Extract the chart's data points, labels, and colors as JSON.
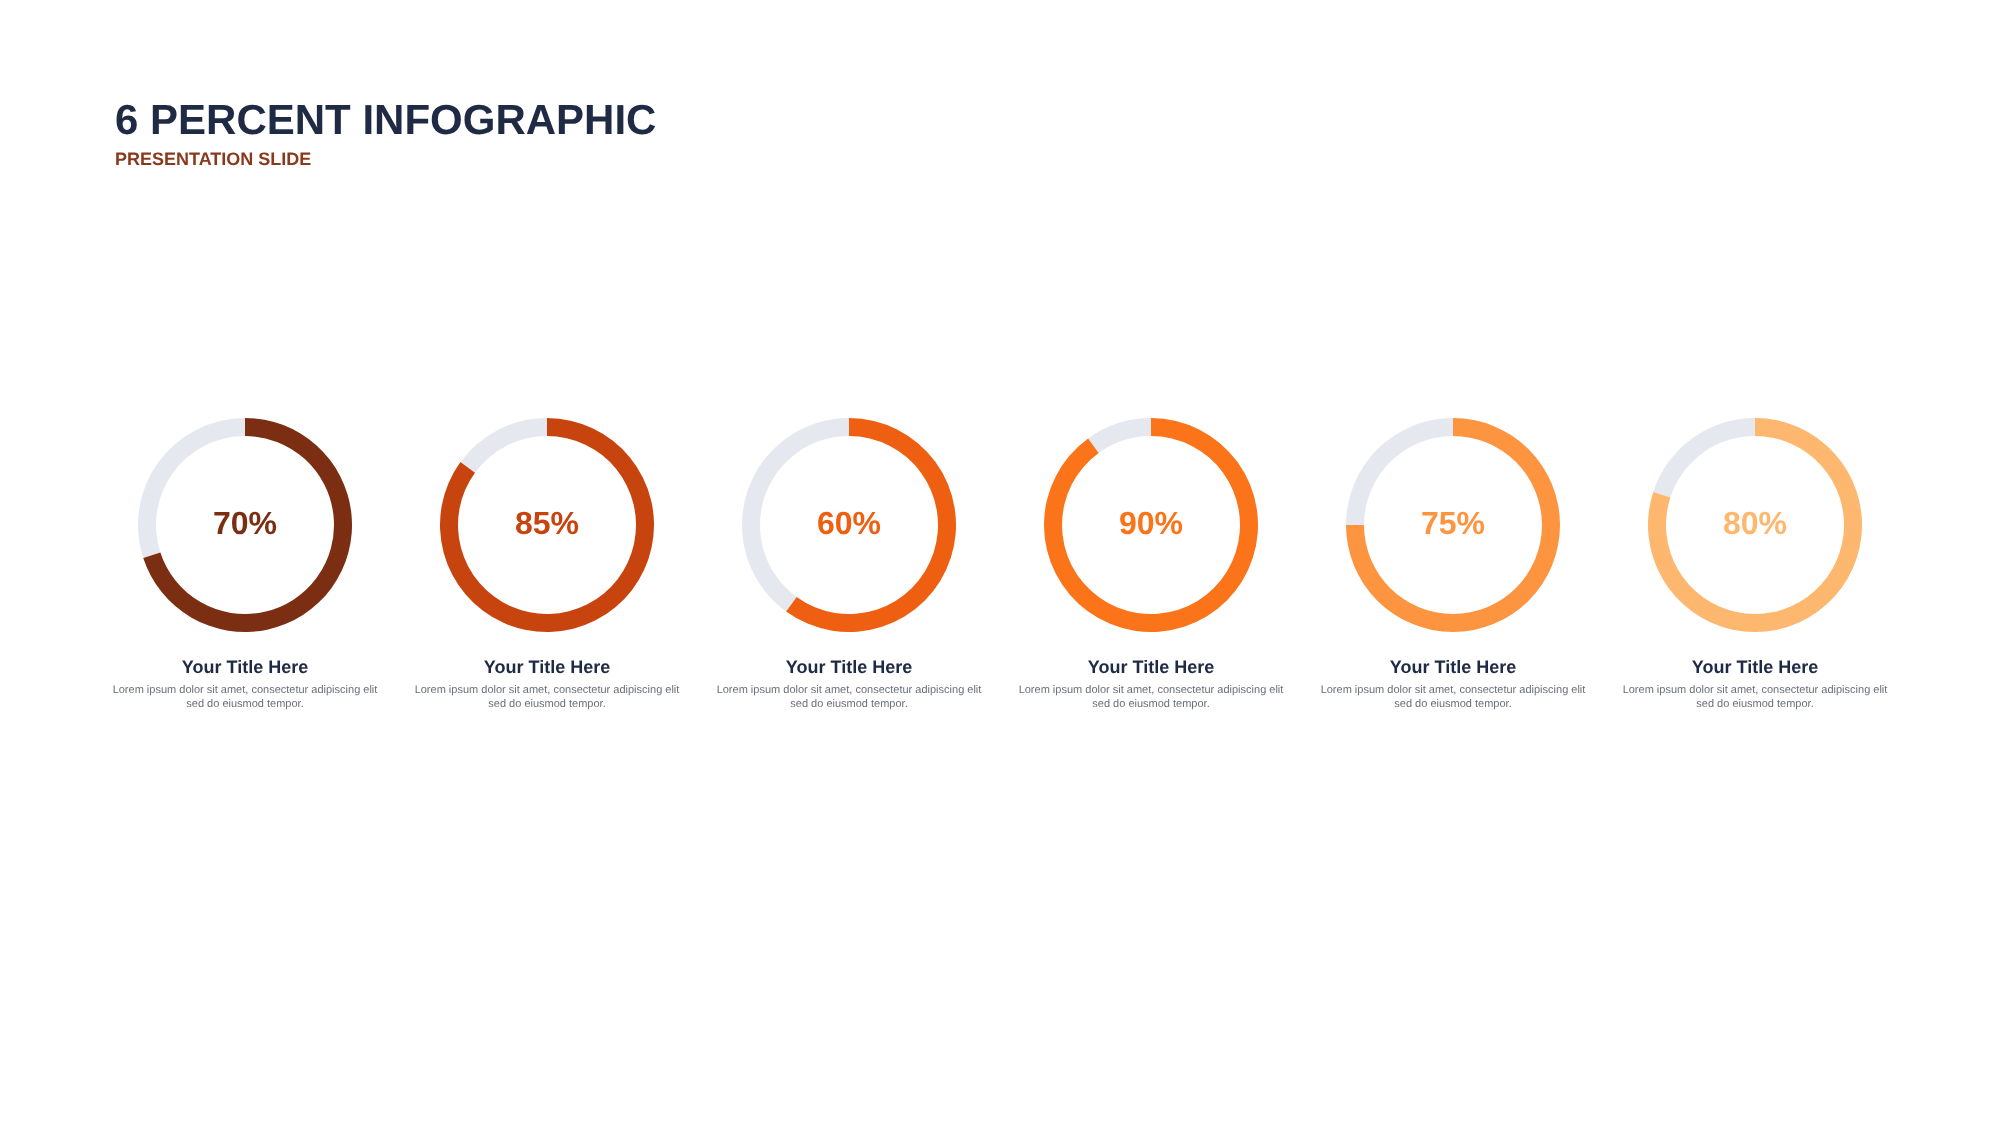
{
  "chart_data": [
    {
      "type": "other",
      "title": "6 PERCENT INFOGRAPHIC",
      "subtitle": "PRESENTATION SLIDE"
    },
    {
      "type": "donut",
      "title": "Your Title Here",
      "subtitle": "Lorem ipsum dolor sit amet, consectetur adipiscing elit sed do eiusmod tempor.",
      "categories": [
        null,
        null
      ],
      "values": [
        70,
        30
      ],
      "colors": [
        "#7b2e12",
        "#e6e8ef"
      ],
      "value_labels": [
        "70%",
        null
      ]
    },
    {
      "type": "donut",
      "title": "Your Title Here",
      "subtitle": "Lorem ipsum dolor sit amet, consectetur adipiscing elit sed do eiusmod tempor.",
      "categories": [
        null,
        null
      ],
      "values": [
        85,
        15
      ],
      "colors": [
        "#c8440f",
        "#e6e8ef"
      ],
      "value_labels": [
        "85%",
        null
      ]
    },
    {
      "type": "donut",
      "title": "Your Title Here",
      "subtitle": "Lorem ipsum dolor sit amet, consectetur adipiscing elit sed do eiusmod tempor.",
      "categories": [
        null,
        null
      ],
      "values": [
        60,
        40
      ],
      "colors": [
        "#ee5f11",
        "#e6e8ef"
      ],
      "value_labels": [
        "60%",
        null
      ]
    },
    {
      "type": "donut",
      "title": "Your Title Here",
      "subtitle": "Lorem ipsum dolor sit amet, consectetur adipiscing elit sed do eiusmod tempor.",
      "categories": [
        null,
        null
      ],
      "values": [
        90,
        10
      ],
      "colors": [
        "#fb7419",
        "#e6e8ef"
      ],
      "value_labels": [
        "90%",
        null
      ]
    },
    {
      "type": "donut",
      "title": "Your Title Here",
      "subtitle": "Lorem ipsum dolor sit amet, consectetur adipiscing elit sed do eiusmod tempor.",
      "categories": [
        null,
        null
      ],
      "values": [
        75,
        25
      ],
      "colors": [
        "#fd9540",
        "#e6e8ef"
      ],
      "value_labels": [
        "75%",
        null
      ]
    },
    {
      "type": "donut",
      "title": "Your Title Here",
      "subtitle": "Lorem ipsum dolor sit amet, consectetur adipiscing elit sed do eiusmod tempor.",
      "categories": [
        null,
        null
      ],
      "values": [
        80,
        20
      ],
      "colors": [
        "#fdb76e",
        "#e6e8ef"
      ],
      "value_labels": [
        "80%",
        null
      ]
    }
  ]
}
